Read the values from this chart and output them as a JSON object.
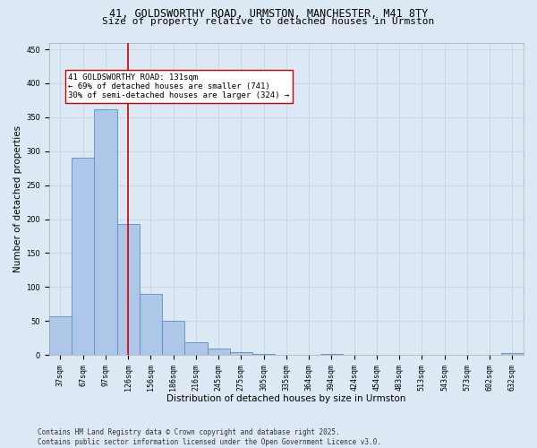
{
  "title_line1": "41, GOLDSWORTHY ROAD, URMSTON, MANCHESTER, M41 8TY",
  "title_line2": "Size of property relative to detached houses in Urmston",
  "xlabel": "Distribution of detached houses by size in Urmston",
  "ylabel": "Number of detached properties",
  "categories": [
    "37sqm",
    "67sqm",
    "97sqm",
    "126sqm",
    "156sqm",
    "186sqm",
    "216sqm",
    "245sqm",
    "275sqm",
    "305sqm",
    "335sqm",
    "364sqm",
    "394sqm",
    "424sqm",
    "454sqm",
    "483sqm",
    "513sqm",
    "543sqm",
    "573sqm",
    "602sqm",
    "632sqm"
  ],
  "values": [
    57,
    290,
    362,
    193,
    90,
    50,
    19,
    9,
    4,
    1,
    0,
    0,
    2,
    0,
    0,
    0,
    0,
    0,
    0,
    0,
    3
  ],
  "bar_color": "#aec6e8",
  "bar_edge_color": "#5a8fc2",
  "vline_x": 3,
  "vline_color": "#cc0000",
  "annotation_text": "41 GOLDSWORTHY ROAD: 131sqm\n← 69% of detached houses are smaller (741)\n30% of semi-detached houses are larger (324) →",
  "annotation_box_color": "#ffffff",
  "annotation_box_edge": "#cc0000",
  "ylim": [
    0,
    460
  ],
  "yticks": [
    0,
    50,
    100,
    150,
    200,
    250,
    300,
    350,
    400,
    450
  ],
  "grid_color": "#c8d8e8",
  "background_color": "#dce9f5",
  "footer_line1": "Contains HM Land Registry data © Crown copyright and database right 2025.",
  "footer_line2": "Contains public sector information licensed under the Open Government Licence v3.0.",
  "title_fontsize": 8.5,
  "subtitle_fontsize": 8,
  "axis_label_fontsize": 7.5,
  "tick_fontsize": 6,
  "annotation_fontsize": 6.5,
  "footer_fontsize": 5.5
}
